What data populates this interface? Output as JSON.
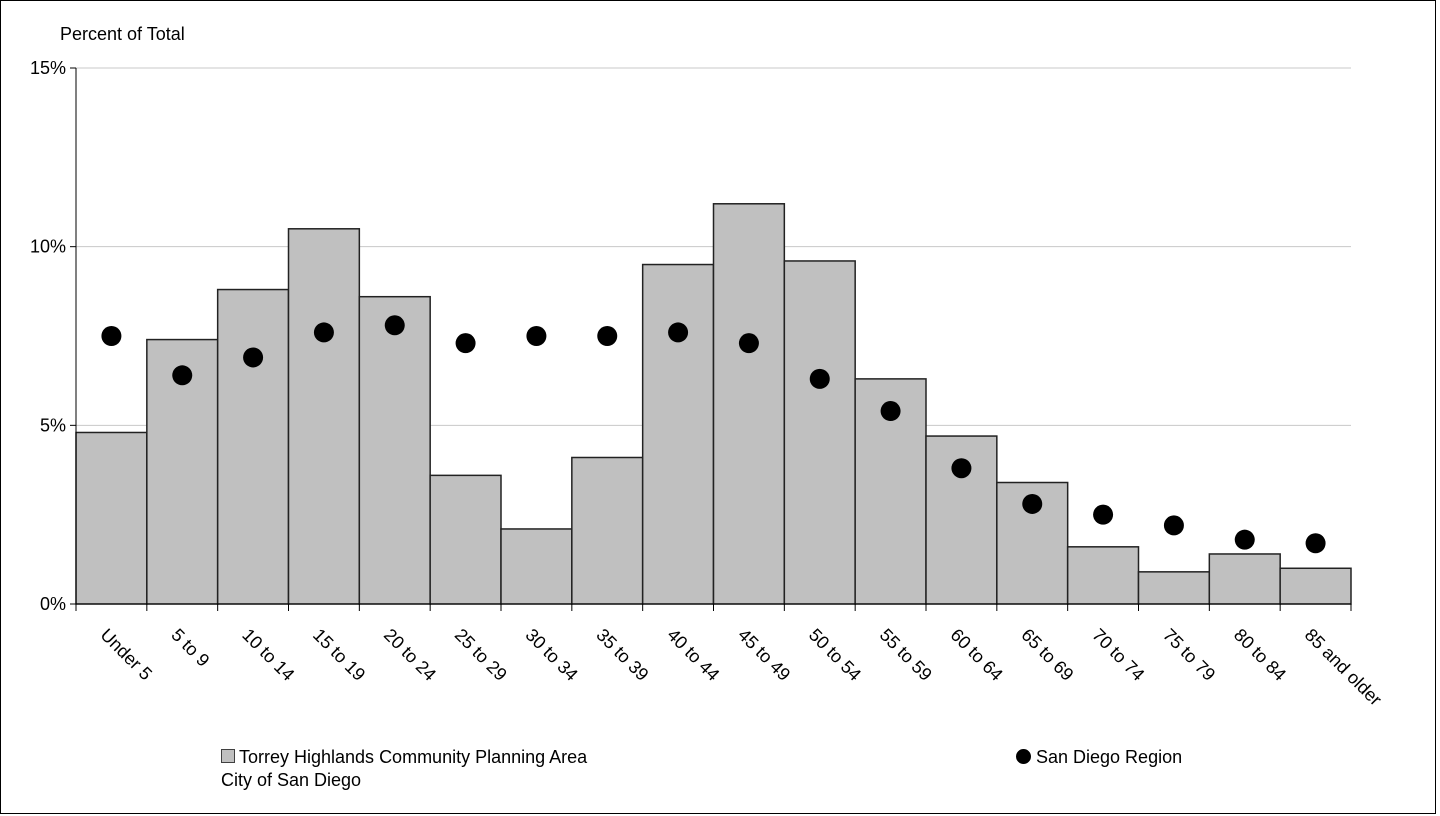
{
  "chart_data": {
    "type": "bar",
    "title": "",
    "ylabel": "Percent of Total",
    "xlabel": "",
    "ylim": [
      0,
      15
    ],
    "yticks": [
      0,
      5,
      10,
      15
    ],
    "ytick_labels": [
      "0%",
      "5%",
      "10%",
      "15%"
    ],
    "grid": true,
    "legend_position": "bottom",
    "categories": [
      "Under 5",
      "5 to 9",
      "10 to 14",
      "15 to 19",
      "20 to 24",
      "25 to 29",
      "30 to 34",
      "35 to 39",
      "40 to 44",
      "45 to 49",
      "50 to 54",
      "55 to 59",
      "60 to 64",
      "65 to 69",
      "70 to 74",
      "75 to 79",
      "80 to 84",
      "85 and older"
    ],
    "series": [
      {
        "name": "Torrey Highlands Community Planning Area",
        "kind": "bar",
        "color": "#c0c0c0",
        "values": [
          4.8,
          7.4,
          8.8,
          10.5,
          8.6,
          3.6,
          2.1,
          4.1,
          9.5,
          11.2,
          9.6,
          6.3,
          4.7,
          3.4,
          1.6,
          0.9,
          1.4,
          1.0
        ]
      },
      {
        "name": "San Diego Region",
        "kind": "dot",
        "color": "#000000",
        "values": [
          7.5,
          6.4,
          6.9,
          7.6,
          7.8,
          7.3,
          7.5,
          7.5,
          7.6,
          7.3,
          6.3,
          5.4,
          3.8,
          2.8,
          2.5,
          2.2,
          1.8,
          1.7
        ]
      }
    ],
    "legend": {
      "bar_label": "Torrey Highlands Community Planning Area",
      "bar_sublabel": "City of San Diego",
      "dot_label": "San Diego Region"
    }
  }
}
